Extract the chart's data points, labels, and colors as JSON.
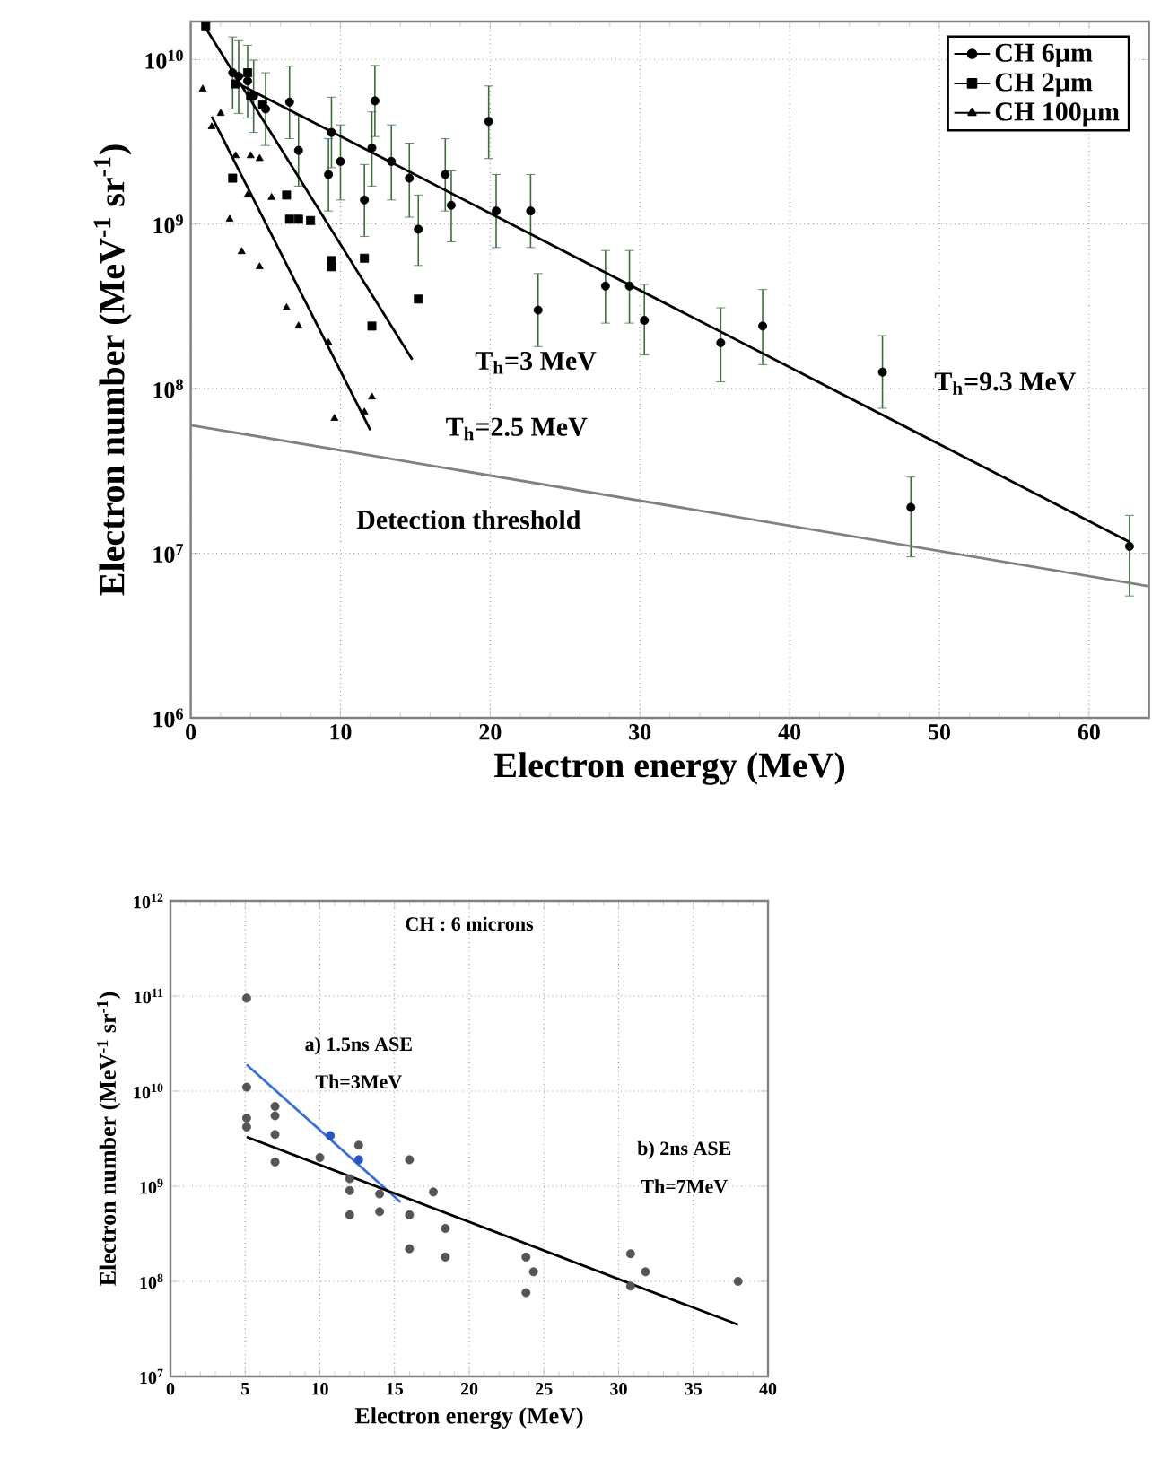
{
  "chart_data": [
    {
      "type": "scatter",
      "xlabel": "Electron energy (MeV)",
      "ylabel": "Electron number (MeV$^{-1}$ sr$^{-1}$)",
      "log": "y",
      "grid": true,
      "legend": "top right",
      "xlim": [
        0,
        64
      ],
      "ylim": [
        1000000.0,
        17000000000.0
      ],
      "xticks": [
        0,
        10,
        20,
        30,
        40,
        50,
        60
      ],
      "yticks": [
        {
          "value": 1000000.0,
          "label": "10$^{6}$"
        },
        {
          "value": 10000000.0,
          "label": "10$^{7}$"
        },
        {
          "value": 100000000.0,
          "label": "10$^{8}$"
        },
        {
          "value": 1000000000.0,
          "label": "10$^{9}$"
        },
        {
          "value": 10000000000.0,
          "label": "10$^{10}$"
        }
      ],
      "series": [
        {
          "name": "CH 6µm",
          "marker": "circle",
          "color": "#000000",
          "x": [
            2.8,
            3.2,
            3.8,
            4.2,
            5.0,
            6.6,
            7.2,
            9.2,
            9.4,
            10.0,
            11.6,
            12.1,
            12.3,
            13.4,
            14.6,
            15.2,
            17.0,
            17.4,
            19.9,
            20.4,
            22.7,
            23.2,
            27.7,
            29.3,
            30.3,
            35.4,
            38.2,
            46.2,
            48.1,
            62.7
          ],
          "values": [
            8300000000.0,
            7900000000.0,
            7400000000.0,
            6000000000.0,
            5000000000.0,
            5500000000.0,
            2800000000.0,
            2000000000.0,
            3600000000.0,
            2400000000.0,
            1400000000.0,
            2900000000.0,
            5600000000.0,
            2400000000.0,
            1900000000.0,
            930000000.0,
            2000000000.0,
            1300000000.0,
            4200000000.0,
            1200000000.0,
            1200000000.0,
            300000000.0,
            420000000.0,
            420000000.0,
            260000000.0,
            190000000.0,
            240000000.0,
            126000000.0,
            19000000.0,
            11000000.0
          ],
          "errors": [
            [
              5000000000.0,
              13700000000.0
            ],
            [
              4700000000.0,
              13000000000.0
            ],
            [
              4400000000.0,
              12200000000.0
            ],
            [
              3600000000.0,
              9900000000.0
            ],
            [
              3000000000.0,
              8300000000.0
            ],
            [
              3300000000.0,
              9100000000.0
            ],
            [
              1700000000.0,
              4600000000.0
            ],
            [
              1200000000.0,
              3300000000.0
            ],
            [
              2200000000.0,
              5900000000.0
            ],
            [
              1400000000.0,
              4000000000.0
            ],
            [
              840000000.0,
              2300000000.0
            ],
            [
              1700000000.0,
              4800000000.0
            ],
            [
              3400000000.0,
              9200000000.0
            ],
            [
              1400000000.0,
              4000000000.0
            ],
            [
              1100000000.0,
              3100000000.0
            ],
            [
              560000000.0,
              1500000000.0
            ],
            [
              1200000000.0,
              3300000000.0
            ],
            [
              780000000.0,
              2100000000.0
            ],
            [
              2500000000.0,
              6900000000.0
            ],
            [
              720000000.0,
              2000000000.0
            ],
            [
              720000000.0,
              2000000000.0
            ],
            [
              180000000.0,
              500000000.0
            ],
            [
              250000000.0,
              690000000.0
            ],
            [
              250000000.0,
              690000000.0
            ],
            [
              160000000.0,
              430000000.0
            ],
            [
              110000000.0,
              310000000.0
            ],
            [
              140000000.0,
              400000000.0
            ],
            [
              76000000.0,
              210000000.0
            ],
            [
              9500000.0,
              29000000.0
            ],
            [
              5500000.0,
              17000000.0
            ]
          ]
        },
        {
          "name": "CH 2µm",
          "marker": "square",
          "color": "#000000",
          "x": [
            1.0,
            2.8,
            3.0,
            3.8,
            4.0,
            4.8,
            6.4,
            6.6,
            7.2,
            8.0,
            9.4,
            9.4,
            11.6,
            12.1,
            15.2
          ],
          "values": [
            16000000000.0,
            1900000000.0,
            7100000000.0,
            8300000000.0,
            6000000000.0,
            5300000000.0,
            1500000000.0,
            1070000000.0,
            1070000000.0,
            1050000000.0,
            600000000.0,
            550000000.0,
            620000000.0,
            240000000.0,
            350000000.0
          ]
        },
        {
          "name": "CH 100µm",
          "marker": "triangle",
          "color": "#000000",
          "x": [
            0.8,
            1.4,
            2.0,
            2.6,
            3.0,
            3.4,
            3.8,
            4.0,
            4.6,
            4.6,
            5.4,
            6.4,
            7.2,
            9.2,
            9.6,
            11.6,
            12.1
          ],
          "values": [
            6600000000.0,
            3900000000.0,
            4700000000.0,
            1070000000.0,
            2600000000.0,
            680000000.0,
            1500000000.0,
            2600000000.0,
            2500000000.0,
            550000000.0,
            1450000000.0,
            310000000.0,
            240000000.0,
            190000000.0,
            66000000.0,
            72000000.0,
            89000000.0
          ]
        },
        {
          "type": "line",
          "color": "#000000",
          "x": [
            3.2,
            62.7
          ],
          "values": [
            7100000000.0,
            11700000.0
          ]
        },
        {
          "type": "line",
          "color": "#000000",
          "x": [
            1.0,
            14.8
          ],
          "values": [
            15500000000.0,
            150000000.0
          ]
        },
        {
          "type": "line",
          "color": "#000000",
          "x": [
            1.4,
            12.0
          ],
          "values": [
            4500000000.0,
            56000000.0
          ]
        },
        {
          "type": "line",
          "color": "#808080",
          "x": [
            0,
            64
          ],
          "values": [
            60000000.0,
            6300000.0
          ]
        }
      ],
      "annotations": [
        "T$_{h}$=3 MeV",
        "T$_{h}$=2.5 MeV",
        "T$_{h}$=9.3 MeV",
        "Detection threshold"
      ]
    },
    {
      "type": "scatter",
      "xlabel": "Electron energy (MeV)",
      "ylabel": "Electron number (MeV$^{-1}$ sr$^{-1}$)",
      "log": "y",
      "grid": true,
      "xlim": [
        0,
        40
      ],
      "ylim": [
        10000000.0,
        1000000000000.0
      ],
      "xticks": [
        0,
        5,
        10,
        15,
        20,
        25,
        30,
        35,
        40
      ],
      "yticks": [
        {
          "value": 10000000.0,
          "label": "10$^{7}$"
        },
        {
          "value": 100000000.0,
          "label": "10$^{8}$"
        },
        {
          "value": 1000000000.0,
          "label": "10$^{9}$"
        },
        {
          "value": 10000000000.0,
          "label": "10$^{10}$"
        },
        {
          "value": 100000000000.0,
          "label": "10$^{11}$"
        },
        {
          "value": 1000000000000.0,
          "label": "10$^{12}$"
        }
      ],
      "series": [
        {
          "marker": "circle",
          "color": "#555555",
          "x": [
            5.1,
            5.1,
            5.1,
            5.1,
            7.0,
            7.0,
            7.0,
            7.0,
            10.0,
            12.0,
            12.6,
            12.0,
            12.0,
            14.0,
            14.0,
            16.0,
            16.0,
            16.0,
            17.6,
            18.4,
            18.4,
            23.8,
            24.3,
            23.8,
            30.8,
            30.8,
            31.8,
            38.0
          ],
          "values": [
            95000000000.0,
            11000000000.0,
            5200000000.0,
            4200000000.0,
            6900000000.0,
            5500000000.0,
            3500000000.0,
            1800000000.0,
            2000000000.0,
            1200000000.0,
            2700000000.0,
            900000000.0,
            500000000.0,
            830000000.0,
            540000000.0,
            1900000000.0,
            500000000.0,
            220000000.0,
            870000000.0,
            360000000.0,
            180000000.0,
            180000000.0,
            126000000.0,
            76000000.0,
            195000000.0,
            89000000.0,
            126000000.0,
            100000000.0
          ]
        },
        {
          "type": "line",
          "color": "#3a6fd8",
          "x": [
            5.1,
            15.4
          ],
          "values": [
            19000000000.0,
            680000000.0
          ]
        },
        {
          "marker": "circle",
          "color": "#2a55c0",
          "x": [
            10.7,
            12.6
          ],
          "values": [
            3400000000.0,
            1900000000.0
          ]
        },
        {
          "type": "line",
          "color": "#000000",
          "x": [
            5.1,
            38.0
          ],
          "values": [
            3300000000.0,
            35000000.0
          ]
        }
      ],
      "annotations": [
        "CH : 6 microns",
        "a) 1.5ns ASE",
        "Th=3MeV",
        "b) 2ns ASE",
        "Th=7MeV"
      ]
    }
  ]
}
